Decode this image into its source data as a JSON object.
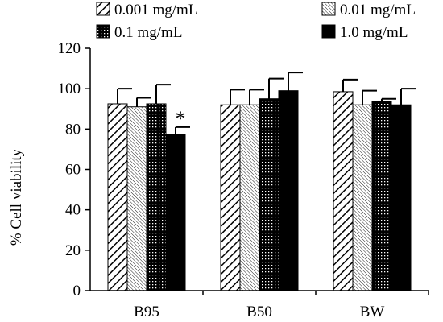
{
  "chart_data": {
    "type": "bar",
    "categories": [
      "B95",
      "B50",
      "BW"
    ],
    "ylabel": "% Cell viability",
    "xlabel": "",
    "ylim": [
      0,
      120
    ],
    "yticks": [
      0,
      20,
      40,
      60,
      80,
      100,
      120
    ],
    "grid": false,
    "legend_position": "top",
    "series": [
      {
        "name": "0.001 mg/mL",
        "pattern": "diagonal-hatch",
        "values": [
          92.5,
          92.0,
          98.5
        ],
        "errors": [
          7.5,
          7.5,
          6.0
        ]
      },
      {
        "name": "0.01 mg/mL",
        "pattern": "fine-diagonal-hatch",
        "values": [
          91.0,
          92.0,
          92.0
        ],
        "errors": [
          4.5,
          7.5,
          7.0
        ]
      },
      {
        "name": "0.1 mg/mL",
        "pattern": "dots-on-black",
        "values": [
          92.5,
          95.0,
          93.5
        ],
        "errors": [
          9.5,
          10.0,
          1.5
        ]
      },
      {
        "name": "1.0 mg/mL",
        "pattern": "solid-black",
        "values": [
          77.5,
          99.0,
          92.0
        ],
        "errors": [
          3.5,
          9.0,
          8.0
        ]
      }
    ],
    "annotations": [
      {
        "text": "*",
        "category": "B95",
        "series": "1.0 mg/mL"
      }
    ],
    "colors": {
      "bar_fill": "#000000",
      "bar_bg": "#ffffff",
      "axis": "#000000"
    }
  }
}
